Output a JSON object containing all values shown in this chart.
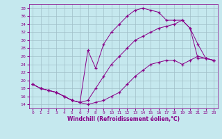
{
  "xlabel": "Windchill (Refroidissement éolien,°C)",
  "xlim": [
    -0.5,
    23.5
  ],
  "ylim": [
    13,
    39
  ],
  "xticks": [
    0,
    1,
    2,
    3,
    4,
    5,
    6,
    7,
    8,
    9,
    10,
    11,
    12,
    13,
    14,
    15,
    16,
    17,
    18,
    19,
    20,
    21,
    22,
    23
  ],
  "yticks": [
    14,
    16,
    18,
    20,
    22,
    24,
    26,
    28,
    30,
    32,
    34,
    36,
    38
  ],
  "bg_color": "#c5e8ee",
  "grid_color": "#a0bfc8",
  "line_color": "#880088",
  "curves": [
    {
      "x": [
        0,
        1,
        2,
        3,
        4,
        5,
        6,
        7,
        8,
        9,
        10,
        11,
        12,
        13,
        14,
        15,
        16,
        17,
        18,
        19,
        20,
        21,
        22,
        23
      ],
      "y": [
        19,
        18,
        17.5,
        17,
        16,
        15,
        14.5,
        14,
        14.5,
        15,
        16,
        17,
        19,
        21,
        22.5,
        24,
        24.5,
        25,
        25,
        24,
        25,
        26,
        25.5,
        25
      ]
    },
    {
      "x": [
        0,
        1,
        2,
        3,
        4,
        5,
        6,
        7,
        8,
        9,
        10,
        11,
        12,
        13,
        14,
        15,
        16,
        17,
        18,
        19,
        20,
        21,
        22,
        23
      ],
      "y": [
        19,
        18,
        17.5,
        17,
        16,
        15,
        14.5,
        15,
        18,
        21,
        24,
        26,
        28,
        30,
        31,
        32,
        33,
        33.5,
        34,
        35,
        33,
        29,
        25.5,
        25
      ]
    },
    {
      "x": [
        0,
        1,
        2,
        3,
        4,
        5,
        6,
        7,
        8,
        9,
        10,
        11,
        12,
        13,
        14,
        15,
        16,
        17,
        18,
        19,
        20,
        21,
        22,
        23
      ],
      "y": [
        19,
        18,
        17.5,
        17,
        16,
        15,
        14.5,
        27.5,
        23,
        29,
        32,
        34,
        36,
        37.5,
        38,
        37.5,
        37,
        35,
        35,
        35,
        33,
        25.5,
        25.5,
        25
      ]
    }
  ]
}
